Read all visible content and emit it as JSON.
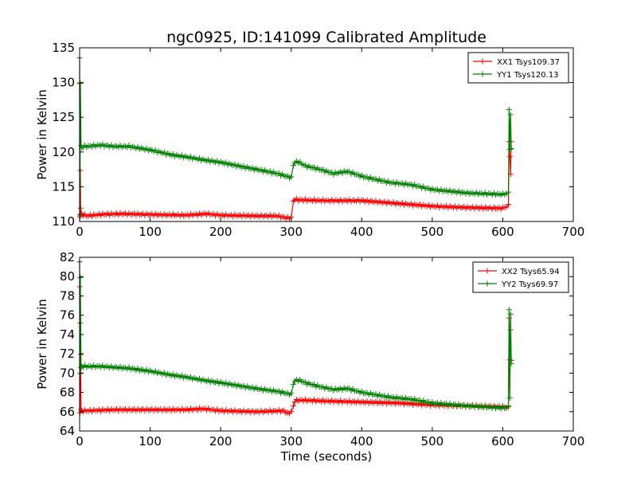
{
  "figure": {
    "title": "ngc0925, ID:141099 Calibrated Amplitude",
    "xlabel": "Time (seconds)"
  },
  "chart_data": [
    {
      "type": "line",
      "title": "ngc0925, ID:141099 Calibrated Amplitude",
      "xlabel": "",
      "ylabel": "Power in Kelvin",
      "xlim": [
        0,
        700
      ],
      "ylim": [
        110,
        135
      ],
      "xticks": [
        0,
        100,
        200,
        300,
        400,
        500,
        600,
        700
      ],
      "yticks": [
        110,
        115,
        120,
        125,
        130,
        135
      ],
      "legend_position": "top-right",
      "series": [
        {
          "name": "XX1 Tsys109.37",
          "color": "#ff0000",
          "x": [
            0,
            0.5,
            1,
            1.5,
            2,
            2.5,
            3,
            5,
            10,
            30,
            60,
            100,
            150,
            180,
            200,
            250,
            280,
            295,
            300,
            303,
            305,
            310,
            350,
            400,
            450,
            500,
            550,
            600,
            608,
            609,
            610,
            611,
            612
          ],
          "y": [
            130,
            110.8,
            117.5,
            112,
            111,
            110.8,
            111,
            111.0,
            110.8,
            111.0,
            111.1,
            111.0,
            110.9,
            111.1,
            110.9,
            110.8,
            110.8,
            110.5,
            110.6,
            112.8,
            113.2,
            113.1,
            113.0,
            113.0,
            112.6,
            112.2,
            112.0,
            111.9,
            112.3,
            121.5,
            119.5,
            116.8,
            121.5
          ]
        },
        {
          "name": "YY1 Tsys120.13",
          "color": "#008000",
          "x": [
            0,
            0.5,
            1,
            2,
            3,
            5,
            10,
            30,
            50,
            70,
            100,
            130,
            150,
            180,
            200,
            250,
            280,
            300,
            303,
            305,
            310,
            320,
            340,
            360,
            380,
            400,
            440,
            470,
            500,
            550,
            600,
            608,
            609,
            610,
            611,
            612
          ],
          "y": [
            133.5,
            111,
            130,
            121,
            120.5,
            120.8,
            120.8,
            121.0,
            120.8,
            120.8,
            120.3,
            119.6,
            119.3,
            118.8,
            118.5,
            117.5,
            116.9,
            116.3,
            118.0,
            118.5,
            118.6,
            118.0,
            117.5,
            116.9,
            117.2,
            116.5,
            115.6,
            115.3,
            114.6,
            114.1,
            113.9,
            114.1,
            126.0,
            120.5,
            125.5,
            120.5
          ]
        }
      ]
    },
    {
      "type": "line",
      "title": "",
      "xlabel": "Time (seconds)",
      "ylabel": "Power in Kelvin",
      "xlim": [
        0,
        700
      ],
      "ylim": [
        64,
        82
      ],
      "xticks": [
        0,
        100,
        200,
        300,
        400,
        500,
        600,
        700
      ],
      "yticks": [
        64,
        66,
        68,
        70,
        72,
        74,
        76,
        78,
        80,
        82
      ],
      "legend_position": "top-right",
      "series": [
        {
          "name": "XX2 Tsys65.94",
          "color": "#ff0000",
          "x": [
            0,
            0.5,
            1,
            1.5,
            2,
            3,
            5,
            10,
            50,
            100,
            150,
            175,
            200,
            250,
            290,
            295,
            300,
            303,
            305,
            310,
            350,
            400,
            450,
            500,
            550,
            600,
            608,
            609,
            610,
            611,
            612
          ],
          "y": [
            79,
            66,
            75.3,
            72,
            66.2,
            66,
            66.1,
            66.1,
            66.2,
            66.2,
            66.2,
            66.3,
            66.1,
            66.0,
            66.1,
            65.8,
            66.0,
            66.5,
            67.1,
            67.2,
            67.1,
            67.0,
            66.9,
            66.7,
            66.6,
            66.5,
            66.4,
            75.7,
            71.5,
            74.5,
            71.3
          ]
        },
        {
          "name": "YY2 Tsys69.97",
          "color": "#008000",
          "x": [
            0,
            0.5,
            1,
            2,
            3,
            5,
            10,
            30,
            50,
            70,
            100,
            130,
            150,
            180,
            200,
            250,
            280,
            300,
            303,
            305,
            310,
            320,
            340,
            360,
            380,
            400,
            440,
            470,
            500,
            550,
            600,
            608,
            609,
            610,
            611,
            612
          ],
          "y": [
            81.5,
            70,
            80,
            70.6,
            70.6,
            70.7,
            70.7,
            70.7,
            70.6,
            70.5,
            70.2,
            69.8,
            69.6,
            69.2,
            69.0,
            68.4,
            68.1,
            67.8,
            68.8,
            69.2,
            69.3,
            69.0,
            68.6,
            68.3,
            68.4,
            68.0,
            67.5,
            67.3,
            66.9,
            66.6,
            66.4,
            66.5,
            76.5,
            67.5,
            76.2,
            71.0
          ]
        }
      ]
    }
  ]
}
